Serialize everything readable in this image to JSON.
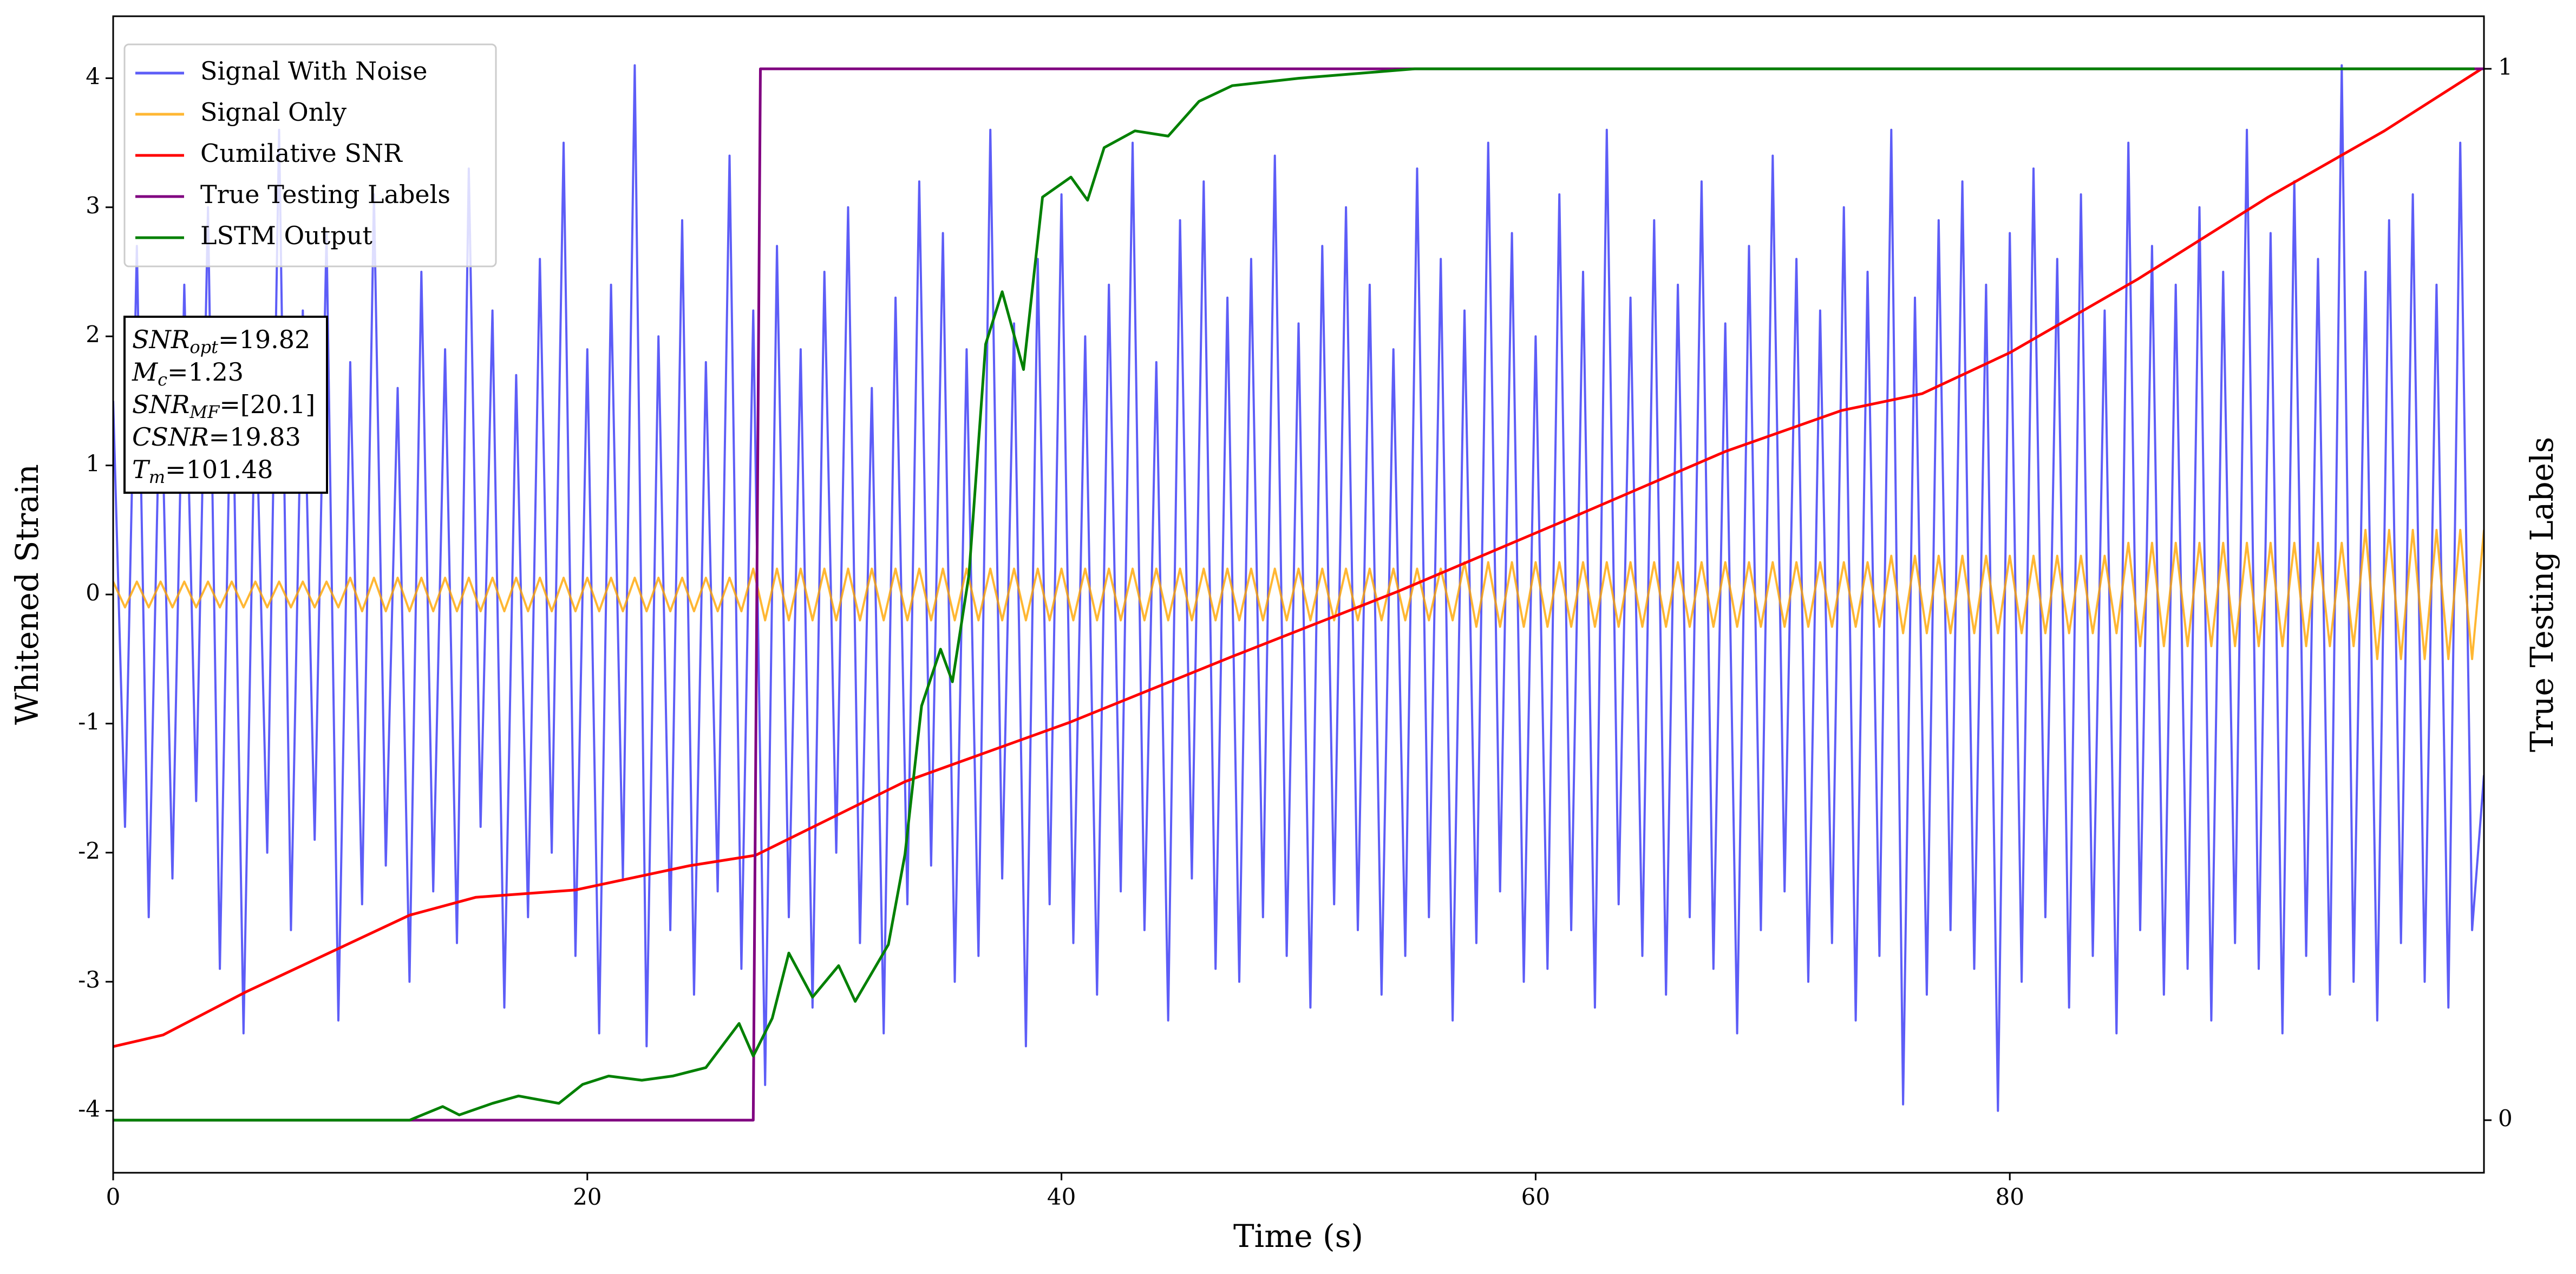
{
  "chart_data": {
    "type": "line",
    "xlabel": "Time (s)",
    "ylabel": "Whitened Strain",
    "y2label": "True Testing Labels",
    "xlim": [
      0,
      100
    ],
    "ylim": [
      -4.48,
      4.48
    ],
    "y2lim": [
      -0.05,
      1.05
    ],
    "xticks": [
      0,
      20,
      40,
      60,
      80
    ],
    "yticks": [
      -4,
      -3,
      -2,
      -1,
      0,
      1,
      2,
      3,
      4
    ],
    "y2ticks": [
      0,
      1
    ],
    "legend": "upper left",
    "annotation": [
      {
        "main": "SNR",
        "sub": "opt",
        "rest": "=19.82"
      },
      {
        "main": "M",
        "sub": "c",
        "rest": "=1.23"
      },
      {
        "main": "SNR",
        "sub": "MF",
        "rest": "=[20.1]"
      },
      {
        "main": "CSNR",
        "rest": "=19.83"
      },
      {
        "main": "T",
        "sub": "m",
        "rest": "=101.48"
      }
    ],
    "series": [
      {
        "name": "Signal With Noise",
        "color": "#3535f5",
        "axis": "y",
        "x": [
          0,
          0.5,
          1,
          1.5,
          2,
          2.5,
          3,
          3.5,
          4,
          4.5,
          5,
          5.5,
          6,
          6.5,
          7,
          7.5,
          8,
          8.5,
          9,
          9.5,
          10,
          10.5,
          11,
          11.5,
          12,
          12.5,
          13,
          13.5,
          14,
          14.5,
          15,
          15.5,
          16,
          16.5,
          17,
          17.5,
          18,
          18.5,
          19,
          19.5,
          20,
          20.5,
          21,
          21.5,
          22,
          22.5,
          23,
          23.5,
          24,
          24.5,
          25,
          25.5,
          26,
          26.5,
          27,
          27.5,
          28,
          28.5,
          29,
          29.5,
          30,
          30.5,
          31,
          31.5,
          32,
          32.5,
          33,
          33.5,
          34,
          34.5,
          35,
          35.5,
          36,
          36.5,
          37,
          37.5,
          38,
          38.5,
          39,
          39.5,
          40,
          40.5,
          41,
          41.5,
          42,
          42.5,
          43,
          43.5,
          44,
          44.5,
          45,
          45.5,
          46,
          46.5,
          47,
          47.5,
          48,
          48.5,
          49,
          49.5,
          50,
          50.5,
          51,
          51.5,
          52,
          52.5,
          53,
          53.5,
          54,
          54.5,
          55,
          55.5,
          56,
          56.5,
          57,
          57.5,
          58,
          58.5,
          59,
          59.5,
          60,
          60.5,
          61,
          61.5,
          62,
          62.5,
          63,
          63.5,
          64,
          64.5,
          65,
          65.5,
          66,
          66.5,
          67,
          67.5,
          68,
          68.5,
          69,
          69.5,
          70,
          70.5,
          71,
          71.5,
          72,
          72.5,
          73,
          73.5,
          74,
          74.5,
          75,
          75.5,
          76,
          76.5,
          77,
          77.5,
          78,
          78.5,
          79,
          79.5,
          80,
          80.5,
          81,
          81.5,
          82,
          82.5,
          83,
          83.5,
          84,
          84.5,
          85,
          85.5,
          86,
          86.5,
          87,
          87.5,
          88,
          88.5,
          89,
          89.5,
          90,
          90.5,
          91,
          91.5,
          92,
          92.5,
          93,
          93.5,
          94,
          94.5,
          95,
          95.5,
          96,
          96.5,
          97,
          97.5,
          98,
          98.5,
          99,
          99.5,
          100
        ],
        "values": [
          1.5,
          -1.8,
          2.7,
          -2.5,
          1.9,
          -2.2,
          2.4,
          -1.6,
          3.0,
          -2.9,
          2.1,
          -3.4,
          1.7,
          -2.0,
          3.6,
          -2.6,
          2.2,
          -1.9,
          2.8,
          -3.3,
          1.8,
          -2.4,
          3.1,
          -2.1,
          1.6,
          -3.0,
          2.5,
          -2.3,
          1.9,
          -2.7,
          3.3,
          -1.8,
          2.2,
          -3.2,
          1.7,
          -2.5,
          2.6,
          -2.0,
          3.5,
          -2.8,
          1.9,
          -3.4,
          2.4,
          -2.2,
          4.1,
          -3.5,
          2.0,
          -2.6,
          2.9,
          -3.1,
          1.8,
          -2.3,
          3.4,
          -2.9,
          2.2,
          -3.8,
          2.7,
          -2.5,
          1.9,
          -3.2,
          2.5,
          -2.0,
          3.0,
          -2.7,
          1.6,
          -3.4,
          2.3,
          -2.4,
          3.2,
          -2.1,
          2.8,
          -3.0,
          1.9,
          -2.8,
          3.6,
          -2.2,
          2.1,
          -3.5,
          2.6,
          -2.4,
          3.1,
          -2.7,
          2.0,
          -3.1,
          2.4,
          -2.3,
          3.5,
          -2.6,
          1.8,
          -3.3,
          2.9,
          -2.2,
          3.2,
          -2.9,
          2.3,
          -3.0,
          2.6,
          -2.5,
          3.4,
          -2.8,
          2.1,
          -3.2,
          2.7,
          -2.4,
          3.0,
          -2.6,
          2.4,
          -3.1,
          1.9,
          -2.8,
          3.3,
          -2.5,
          2.6,
          -3.3,
          2.2,
          -2.7,
          3.5,
          -2.3,
          2.8,
          -3.0,
          2.0,
          -2.9,
          3.1,
          -2.6,
          2.5,
          -3.2,
          3.6,
          -2.4,
          2.3,
          -2.8,
          2.9,
          -3.1,
          2.4,
          -2.5,
          3.2,
          -2.9,
          2.1,
          -3.4,
          2.7,
          -2.6,
          3.4,
          -2.3,
          2.6,
          -3.0,
          2.2,
          -2.7,
          3.0,
          -3.3,
          2.5,
          -2.8,
          3.6,
          -3.95,
          2.3,
          -3.1,
          2.9,
          -2.6,
          3.2,
          -2.9,
          2.4,
          -4.0,
          2.8,
          -3.0,
          3.3,
          -2.5,
          2.6,
          -3.2,
          3.1,
          -2.8,
          2.2,
          -3.4,
          3.5,
          -2.6,
          2.7,
          -3.1,
          2.4,
          -2.9,
          3.0,
          -3.3,
          2.5,
          -2.7,
          3.6,
          -2.9,
          2.8,
          -3.4,
          3.2,
          -2.8,
          2.6,
          -3.1,
          4.1,
          -3.0,
          2.5,
          -3.3,
          2.9,
          -2.7,
          3.1,
          -3.0,
          2.4,
          -3.2,
          3.5,
          -2.6,
          -1.4
        ]
      },
      {
        "name": "Signal Only",
        "color": "#ffa500",
        "axis": "y",
        "x": [
          0,
          0.5,
          1,
          1.5,
          2,
          2.5,
          3,
          3.5,
          4,
          4.5,
          5,
          5.5,
          6,
          6.5,
          7,
          7.5,
          8,
          8.5,
          9,
          9.5,
          10,
          10.5,
          11,
          11.5,
          12,
          12.5,
          13,
          13.5,
          14,
          14.5,
          15,
          15.5,
          16,
          16.5,
          17,
          17.5,
          18,
          18.5,
          19,
          19.5,
          20,
          20.5,
          21,
          21.5,
          22,
          22.5,
          23,
          23.5,
          24,
          24.5,
          25,
          25.5,
          26,
          26.5,
          27,
          27.5,
          28,
          28.5,
          29,
          29.5,
          30,
          30.5,
          31,
          31.5,
          32,
          32.5,
          33,
          33.5,
          34,
          34.5,
          35,
          35.5,
          36,
          36.5,
          37,
          37.5,
          38,
          38.5,
          39,
          39.5,
          40,
          40.5,
          41,
          41.5,
          42,
          42.5,
          43,
          43.5,
          44,
          44.5,
          45,
          45.5,
          46,
          46.5,
          47,
          47.5,
          48,
          48.5,
          49,
          49.5,
          50,
          50.5,
          51,
          51.5,
          52,
          52.5,
          53,
          53.5,
          54,
          54.5,
          55,
          55.5,
          56,
          56.5,
          57,
          57.5,
          58,
          58.5,
          59,
          59.5,
          60,
          60.5,
          61,
          61.5,
          62,
          62.5,
          63,
          63.5,
          64,
          64.5,
          65,
          65.5,
          66,
          66.5,
          67,
          67.5,
          68,
          68.5,
          69,
          69.5,
          70,
          70.5,
          71,
          71.5,
          72,
          72.5,
          73,
          73.5,
          74,
          74.5,
          75,
          75.5,
          76,
          76.5,
          77,
          77.5,
          78,
          78.5,
          79,
          79.5,
          80,
          80.5,
          81,
          81.5,
          82,
          82.5,
          83,
          83.5,
          84,
          84.5,
          85,
          85.5,
          86,
          86.5,
          87,
          87.5,
          88,
          88.5,
          89,
          89.5,
          90,
          90.5,
          91,
          91.5,
          92,
          92.5,
          93,
          93.5,
          94,
          94.5,
          95,
          95.5,
          96,
          96.5,
          97,
          97.5,
          98,
          98.5,
          99,
          99.5,
          100
        ],
        "values": [
          0.1,
          -0.1,
          0.1,
          -0.1,
          0.1,
          -0.1,
          0.1,
          -0.1,
          0.1,
          -0.1,
          0.1,
          -0.1,
          0.1,
          -0.1,
          0.1,
          -0.1,
          0.1,
          -0.1,
          0.1,
          -0.1,
          0.13,
          -0.13,
          0.13,
          -0.13,
          0.13,
          -0.13,
          0.13,
          -0.13,
          0.13,
          -0.13,
          0.13,
          -0.13,
          0.13,
          -0.13,
          0.13,
          -0.13,
          0.13,
          -0.13,
          0.13,
          -0.13,
          0.13,
          -0.13,
          0.13,
          -0.13,
          0.13,
          -0.13,
          0.13,
          -0.13,
          0.13,
          -0.13,
          0.13,
          -0.13,
          0.13,
          -0.13,
          0.2,
          -0.2,
          0.2,
          -0.2,
          0.2,
          -0.2,
          0.2,
          -0.2,
          0.2,
          -0.2,
          0.2,
          -0.2,
          0.2,
          -0.2,
          0.2,
          -0.2,
          0.2,
          -0.2,
          0.2,
          -0.2,
          0.2,
          -0.2,
          0.2,
          -0.2,
          0.2,
          -0.2,
          0.2,
          -0.2,
          0.2,
          -0.2,
          0.2,
          -0.2,
          0.2,
          -0.2,
          0.2,
          -0.2,
          0.2,
          -0.2,
          0.2,
          -0.2,
          0.2,
          -0.2,
          0.2,
          -0.2,
          0.2,
          -0.2,
          0.2,
          -0.2,
          0.2,
          -0.2,
          0.2,
          -0.2,
          0.2,
          -0.2,
          0.2,
          -0.2,
          0.2,
          -0.2,
          0.2,
          -0.2,
          0.25,
          -0.25,
          0.25,
          -0.25,
          0.25,
          -0.25,
          0.25,
          -0.25,
          0.25,
          -0.25,
          0.25,
          -0.25,
          0.25,
          -0.25,
          0.25,
          -0.25,
          0.25,
          -0.25,
          0.25,
          -0.25,
          0.25,
          -0.25,
          0.25,
          -0.25,
          0.25,
          -0.25,
          0.25,
          -0.25,
          0.25,
          -0.25,
          0.25,
          -0.25,
          0.25,
          -0.25,
          0.25,
          -0.25,
          0.3,
          -0.3,
          0.3,
          -0.3,
          0.3,
          -0.3,
          0.3,
          -0.3,
          0.3,
          -0.3,
          0.3,
          -0.3,
          0.3,
          -0.3,
          0.3,
          -0.3,
          0.3,
          -0.3,
          0.3,
          -0.3,
          0.4,
          -0.4,
          0.4,
          -0.4,
          0.4,
          -0.4,
          0.4,
          -0.4,
          0.4,
          -0.4,
          0.4,
          -0.4,
          0.4,
          -0.4,
          0.4,
          -0.4,
          0.4,
          -0.4,
          0.4,
          -0.4,
          0.5,
          -0.5,
          0.5,
          -0.5,
          0.5,
          -0.5,
          0.5,
          -0.5,
          0.5,
          -0.5,
          0.5
        ]
      },
      {
        "name": "Cumilative SNR",
        "color": "#ff0000",
        "axis": "y2",
        "x": [
          0,
          2.1,
          5.6,
          9.1,
          12.5,
          15.3,
          19.5,
          24.3,
          27.1,
          33.4,
          40.3,
          47.2,
          54.2,
          61.1,
          68,
          72.9,
          76.3,
          80,
          85.4,
          90.9,
          95.8,
          99.9
        ],
        "values": [
          0.07,
          0.081,
          0.122,
          0.159,
          0.195,
          0.212,
          0.219,
          0.242,
          0.252,
          0.322,
          0.378,
          0.441,
          0.503,
          0.569,
          0.636,
          0.675,
          0.691,
          0.73,
          0.8,
          0.878,
          0.941,
          1.0
        ]
      },
      {
        "name": "True Testing Labels",
        "color": "#800080",
        "axis": "y2",
        "x": [
          0,
          27.0,
          27.3,
          100
        ],
        "values": [
          0,
          0,
          1,
          1
        ]
      },
      {
        "name": "LSTM Output",
        "color": "#008000",
        "axis": "y2",
        "x": [
          0,
          12.5,
          13.9,
          14.6,
          16,
          17.1,
          18.8,
          19.8,
          20.9,
          22.3,
          23.6,
          25,
          26.4,
          27,
          27.8,
          28.5,
          29.5,
          30.6,
          31.3,
          32.7,
          33.4,
          34.1,
          34.9,
          35.4,
          36.1,
          36.8,
          37.5,
          38.4,
          39.2,
          40.4,
          41.1,
          41.8,
          43.1,
          44.5,
          45.8,
          47.2,
          50,
          54.9,
          99.6
        ],
        "values": [
          0,
          0,
          0.013,
          0.005,
          0.016,
          0.023,
          0.016,
          0.034,
          0.042,
          0.038,
          0.042,
          0.05,
          0.092,
          0.061,
          0.097,
          0.159,
          0.117,
          0.147,
          0.113,
          0.167,
          0.253,
          0.394,
          0.448,
          0.417,
          0.519,
          0.738,
          0.788,
          0.714,
          0.878,
          0.897,
          0.875,
          0.925,
          0.941,
          0.936,
          0.969,
          0.984,
          0.991,
          1.0,
          1.0
        ]
      }
    ]
  }
}
